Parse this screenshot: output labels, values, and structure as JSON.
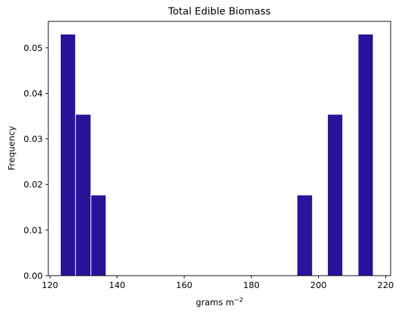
{
  "chart_data": {
    "type": "bar",
    "title": "Total Edible Biomass",
    "xlabel": "grams m",
    "xlabel_superscript": "−2",
    "ylabel": "Frequency",
    "xlim": [
      119.5,
      221.5
    ],
    "ylim": [
      0,
      0.0558
    ],
    "x_ticks": [
      120,
      140,
      160,
      180,
      200,
      220
    ],
    "y_ticks": [
      0.0,
      0.01,
      0.02,
      0.03,
      0.04,
      0.05
    ],
    "y_tick_labels": [
      "0.00",
      "0.01",
      "0.02",
      "0.03",
      "0.04",
      "0.05"
    ],
    "bar_color": "#2a129b",
    "bar_edge_color": "#ffffff",
    "grid": false,
    "bins": [
      {
        "x0": 123.1,
        "x1": 127.6,
        "value": 0.053
      },
      {
        "x0": 127.6,
        "x1": 132.2,
        "value": 0.0354
      },
      {
        "x0": 132.2,
        "x1": 136.7,
        "value": 0.0177
      },
      {
        "x0": 193.6,
        "x1": 198.2,
        "value": 0.0177
      },
      {
        "x0": 202.7,
        "x1": 207.2,
        "value": 0.0354
      },
      {
        "x0": 211.8,
        "x1": 216.3,
        "value": 0.053
      }
    ]
  }
}
